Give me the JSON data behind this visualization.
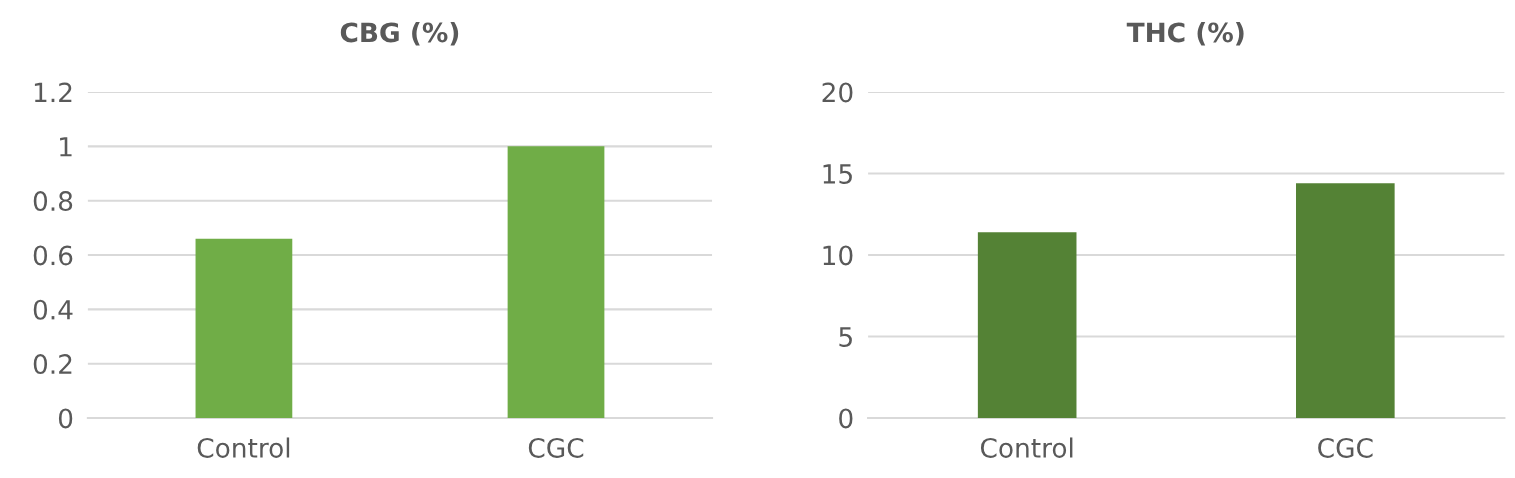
{
  "chart_data": [
    {
      "type": "bar",
      "title": "CBG (%)",
      "categories": [
        "Control",
        "CGC"
      ],
      "values": [
        0.66,
        1.0
      ],
      "color": "#70ad47",
      "ylim": [
        0,
        1.2
      ],
      "yticks": [
        0,
        0.2,
        0.4,
        0.6,
        0.8,
        1,
        1.2
      ],
      "grid": "y"
    },
    {
      "type": "bar",
      "title": "THC (%)",
      "categories": [
        "Control",
        "CGC"
      ],
      "values": [
        11.4,
        14.4
      ],
      "color": "#548235",
      "ylim": [
        0,
        20
      ],
      "yticks": [
        0,
        5,
        10,
        15,
        20
      ],
      "grid": "y"
    }
  ]
}
